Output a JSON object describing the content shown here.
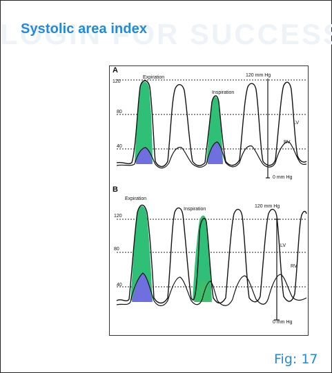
{
  "title": "Systolic area index",
  "watermark": "LOGIN FOR SUCCESS",
  "caption": "Fig: 17",
  "panels": [
    {
      "letter": "A",
      "y_ticks": [
        "120",
        "80",
        "40"
      ],
      "expiration_label": "Expiration",
      "inspiration_label": "Inspiration",
      "top_scale": "120 mm Hg",
      "bottom_scale": "0 mm Hg",
      "lv_label": "LV",
      "rv_label": "RV"
    },
    {
      "letter": "B",
      "y_ticks": [
        "120",
        "80",
        "40"
      ],
      "expiration_label": "Expiration",
      "inspiration_label": "Inspiration",
      "top_scale": "120 mm Hg",
      "bottom_scale": "0 mm Hg",
      "lv_label": "LV",
      "rv_label": "RV"
    }
  ],
  "colors": {
    "lv_area": "#2fbf77",
    "rv_area": "#6f6fe0",
    "title": "#1f8ae0"
  }
}
